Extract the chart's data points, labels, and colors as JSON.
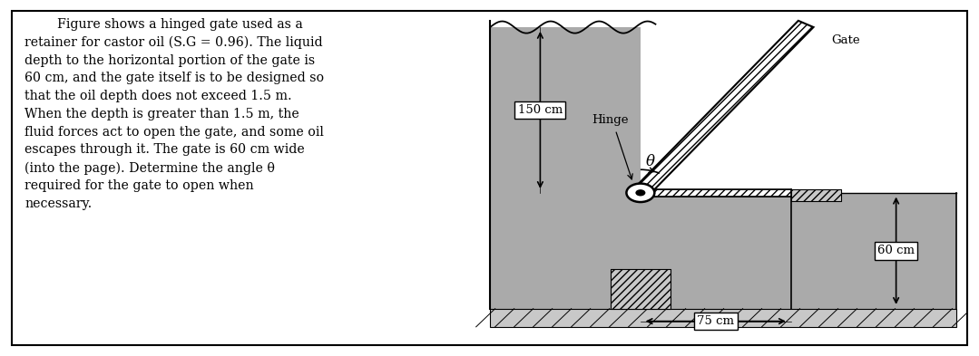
{
  "bg_color": "#ffffff",
  "fluid_color": "#aaaaaa",
  "wall_color": "#c8c8c8",
  "text_color": "#000000",
  "figure_width": 10.79,
  "figure_height": 3.93,
  "description_lines": [
    "        Figure shows a hinged gate used as a",
    "retainer for castor oil (S.G = 0.96). The liquid",
    "depth to the horizontal portion of the gate is",
    "60 cm, and the gate itself is to be designed so",
    "that the oil depth does not exceed 1.5 m.",
    "When the depth is greater than 1.5 m, the",
    "fluid forces act to open the gate, and some oil",
    "escapes through it. The gate is 60 cm wide",
    "(into the page). Determine the angle θ",
    "required for the gate to open when",
    "necessary."
  ],
  "label_150": "150 cm",
  "label_75": "75 cm",
  "label_60": "60 cm",
  "label_hinge": "Hinge",
  "label_gate": "Gate",
  "label_theta": "θ"
}
